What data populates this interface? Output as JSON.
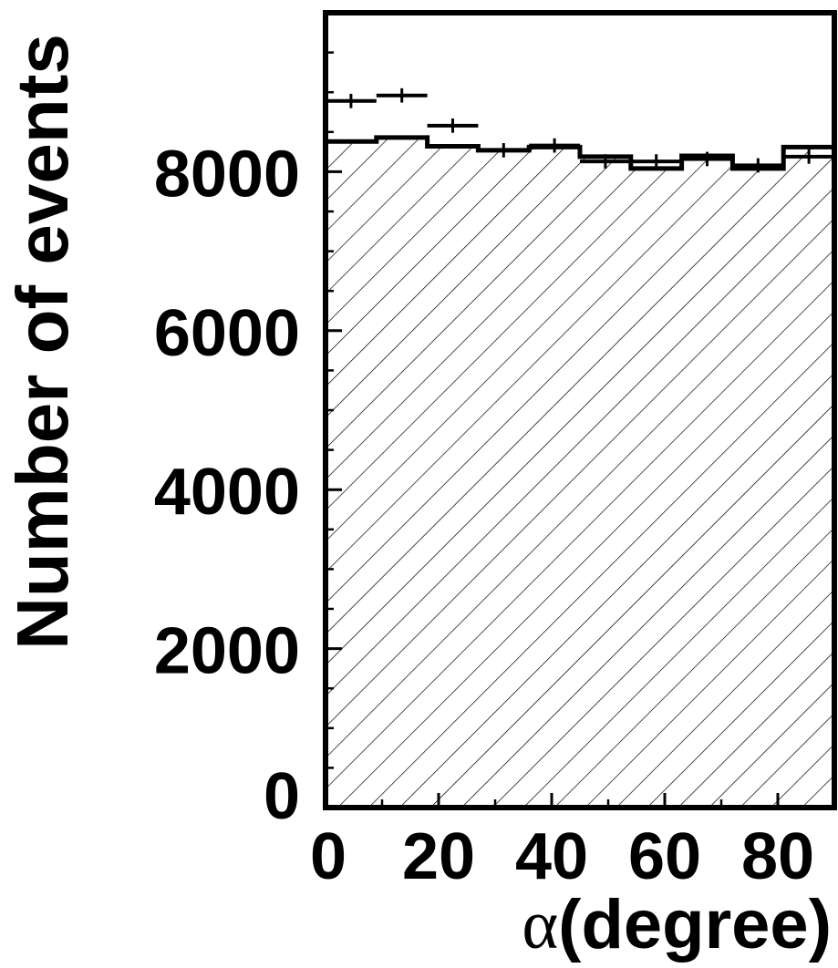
{
  "chart_data": {
    "type": "histogram",
    "xlabel_symbol": "α",
    "xlabel_text": "(degree)",
    "ylabel": "Number of events",
    "xlim": [
      0,
      90
    ],
    "ylim": [
      0,
      10000
    ],
    "bin_edges": [
      0,
      9,
      18,
      27,
      36,
      45,
      54,
      63,
      72,
      81,
      90
    ],
    "x_ticks": [
      0,
      20,
      40,
      60,
      80
    ],
    "x_tick_labels": [
      "0",
      "20",
      "40",
      "60",
      "80"
    ],
    "y_ticks": [
      0,
      2000,
      4000,
      6000,
      8000
    ],
    "y_tick_labels": [
      "0",
      "2000",
      "4000",
      "6000",
      "8000"
    ],
    "series": [
      {
        "kind": "histogram-hatched",
        "values": [
          8380,
          8430,
          8320,
          8270,
          8310,
          8190,
          8040,
          8200,
          8040,
          8310
        ]
      },
      {
        "kind": "points-with-errors",
        "x": [
          4.5,
          13.5,
          22.5,
          31.5,
          40.5,
          49.5,
          58.5,
          67.5,
          76.5,
          85.5
        ],
        "y": [
          8890,
          8960,
          8580,
          8270,
          8330,
          8130,
          8130,
          8160,
          8080,
          8190
        ],
        "yerr": [
          90,
          90,
          90,
          90,
          90,
          90,
          90,
          90,
          90,
          90
        ]
      }
    ],
    "grid": false,
    "legend": "none"
  }
}
